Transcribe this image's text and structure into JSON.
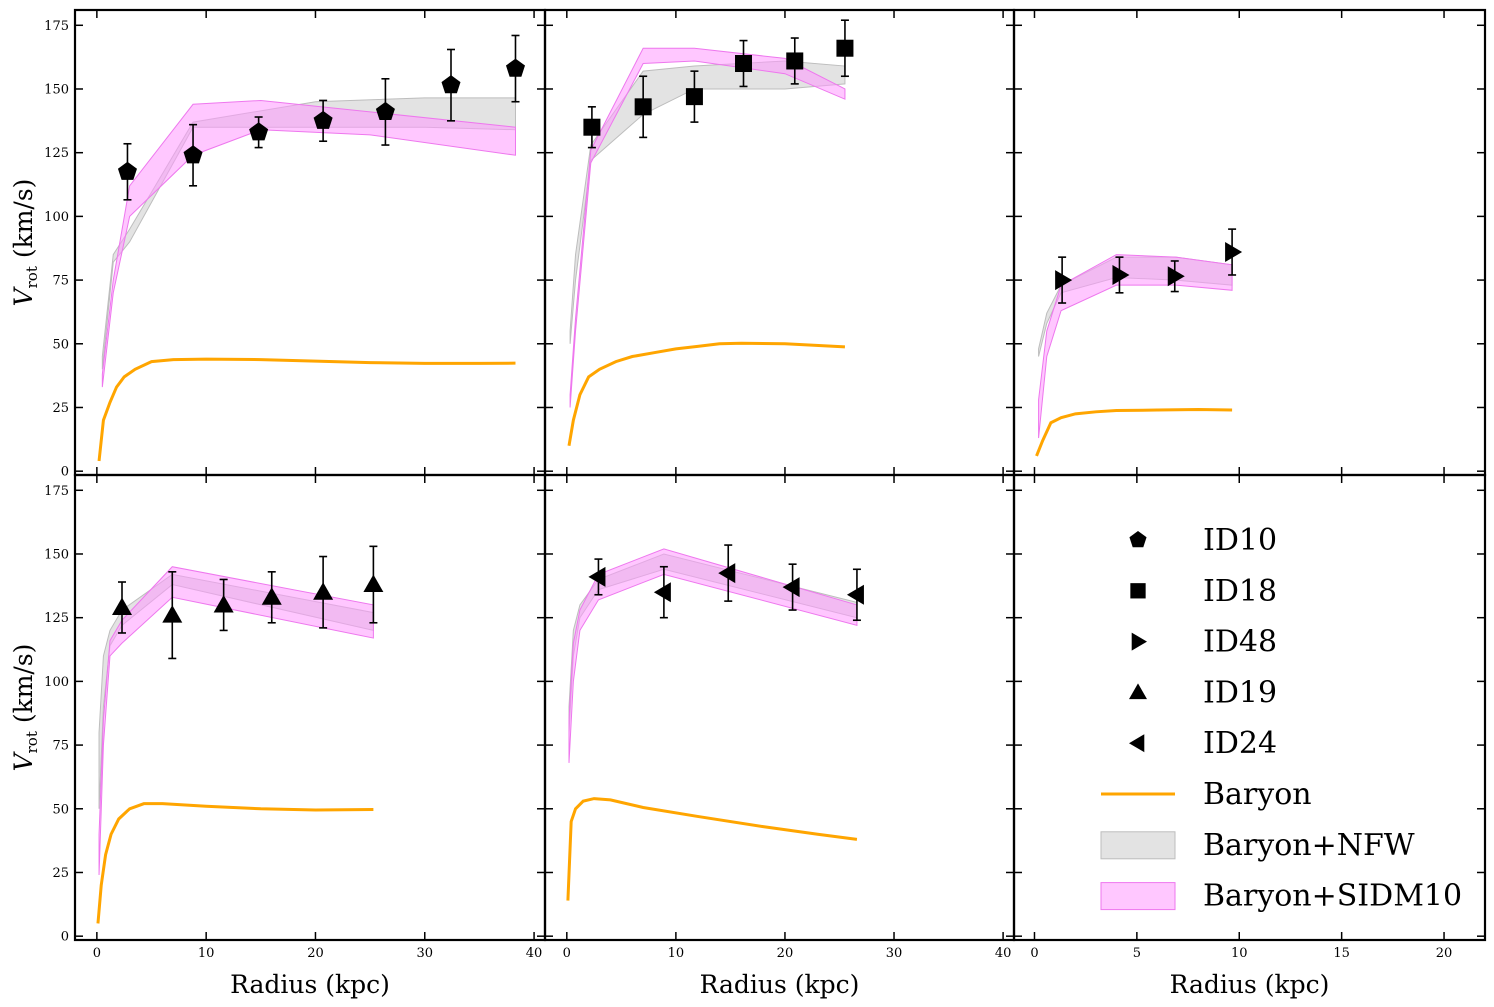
{
  "chart_data": [
    {
      "type": "line",
      "panel": "top-left",
      "ylabel": "V_rot (km/s)",
      "xlabel": "",
      "xlim": [
        -2,
        41
      ],
      "ylim": [
        -1.5,
        181
      ],
      "ytick_labels": [
        "0",
        "25",
        "50",
        "75",
        "100",
        "125",
        "150",
        "175"
      ],
      "xtick_labels": [],
      "points": {
        "name": "ID10",
        "marker": "pentagon",
        "x": [
          2.8,
          8.8,
          14.8,
          20.7,
          26.4,
          32.4,
          38.3
        ],
        "y": [
          117.5,
          124,
          133,
          137.5,
          141,
          151.5,
          158
        ],
        "err": [
          11,
          12,
          6,
          8,
          13,
          14,
          13
        ]
      },
      "baryon": {
        "x": [
          0.2,
          0.6,
          1.2,
          1.8,
          2.5,
          3.5,
          5,
          7,
          10,
          15,
          20,
          25,
          30,
          35,
          38.3
        ],
        "y": [
          4,
          20,
          27,
          33,
          37,
          40,
          43,
          43.8,
          44,
          43.8,
          43.2,
          42.6,
          42.3,
          42.3,
          42.4
        ]
      },
      "nfw": {
        "x": [
          0.5,
          1.5,
          3,
          8.8,
          20,
          30,
          38.3
        ],
        "lo": [
          40,
          82,
          90,
          135,
          135,
          135,
          134
        ],
        "hi": [
          45,
          85,
          95,
          137,
          145,
          146.5,
          146.5
        ]
      },
      "sidm": {
        "x": [
          0.5,
          1.5,
          3,
          8.8,
          15,
          25,
          38.3
        ],
        "lo": [
          33,
          70,
          100,
          124,
          134,
          132,
          124
        ],
        "hi": [
          38,
          75,
          112,
          144,
          145.5,
          141,
          135
        ]
      }
    },
    {
      "type": "line",
      "panel": "top-middle",
      "ylabel": "",
      "xlabel": "",
      "xlim": [
        -2,
        41
      ],
      "ylim": [
        -1.5,
        181
      ],
      "ytick_labels": [],
      "xtick_labels": [],
      "points": {
        "name": "ID18",
        "marker": "square",
        "x": [
          2.3,
          7,
          11.7,
          16.2,
          20.9,
          25.5
        ],
        "y": [
          135,
          143,
          147,
          160,
          161,
          166
        ],
        "err": [
          8,
          12,
          10,
          9,
          9,
          11
        ]
      },
      "baryon": {
        "x": [
          0.2,
          0.6,
          1.2,
          2,
          3,
          4.5,
          6,
          8,
          10,
          12,
          14,
          16,
          20,
          25.5
        ],
        "y": [
          10,
          20,
          30,
          37,
          40,
          43,
          45,
          46.5,
          48,
          49,
          50,
          50.2,
          50,
          48.8
        ]
      },
      "nfw": {
        "x": [
          0.3,
          0.8,
          2.2,
          7,
          11.7,
          20,
          25.5
        ],
        "lo": [
          50,
          75,
          122,
          140,
          150,
          150,
          152
        ],
        "hi": [
          55,
          85,
          128,
          157,
          159,
          161,
          159
        ]
      },
      "sidm": {
        "x": [
          0.3,
          0.8,
          2.2,
          7,
          11.7,
          20,
          25.5
        ],
        "lo": [
          25,
          55,
          121,
          160,
          161,
          156,
          146
        ],
        "hi": [
          30,
          60,
          126,
          166,
          166,
          162,
          150
        ]
      }
    },
    {
      "type": "line",
      "panel": "top-right",
      "ylabel": "",
      "xlabel": "",
      "xlim": [
        -1,
        22
      ],
      "ylim": [
        -1.5,
        181
      ],
      "ytick_labels": [],
      "xtick_labels": [],
      "points": {
        "name": "ID48",
        "marker": "triangle-right",
        "x": [
          1.35,
          4.15,
          6.85,
          9.65
        ],
        "y": [
          75,
          77,
          76.5,
          86
        ],
        "err": [
          9,
          7,
          6,
          9
        ]
      },
      "baryon": {
        "x": [
          0.1,
          0.4,
          0.8,
          1.3,
          2,
          3,
          4,
          6,
          8,
          9.65
        ],
        "y": [
          6,
          12,
          19,
          21,
          22.5,
          23.3,
          23.8,
          24,
          24.2,
          24
        ]
      },
      "nfw": {
        "x": [
          0.2,
          0.6,
          1.3,
          4,
          6.9,
          9.65
        ],
        "lo": [
          45,
          58,
          70,
          76,
          75,
          73
        ],
        "hi": [
          48,
          62,
          73,
          84,
          84,
          81
        ]
      },
      "sidm": {
        "x": [
          0.2,
          0.6,
          1.3,
          4,
          6.9,
          9.65
        ],
        "lo": [
          13,
          45,
          63,
          73,
          73,
          71
        ],
        "hi": [
          28,
          55,
          73,
          85,
          84,
          81
        ]
      }
    },
    {
      "type": "line",
      "panel": "bottom-left",
      "ylabel": "V_rot (km/s)",
      "xlabel": "Radius (kpc)",
      "xlim": [
        -2,
        41
      ],
      "ylim": [
        -1.5,
        181
      ],
      "ytick_labels": [
        "0",
        "25",
        "50",
        "75",
        "100",
        "125",
        "150",
        "175"
      ],
      "xtick_labels": [
        "0",
        "10",
        "20",
        "30",
        "40"
      ],
      "points": {
        "name": "ID19",
        "marker": "triangle-up",
        "x": [
          2.3,
          6.9,
          11.6,
          16,
          20.7,
          25.3
        ],
        "y": [
          129,
          126,
          130,
          133,
          135,
          138
        ],
        "err": [
          10,
          17,
          10,
          10,
          14,
          15
        ]
      },
      "baryon": {
        "x": [
          0.1,
          0.4,
          0.8,
          1.3,
          2,
          3,
          4.3,
          6,
          10,
          15,
          20,
          25.3
        ],
        "y": [
          5,
          20,
          32,
          40,
          46,
          50,
          52,
          52,
          51,
          50,
          49.5,
          49.7
        ]
      },
      "nfw": {
        "x": [
          0.2,
          0.6,
          1.2,
          2.3,
          6.9,
          25.3
        ],
        "lo": [
          50,
          90,
          114,
          122,
          138,
          120
        ],
        "hi": [
          80,
          110,
          120,
          128,
          142,
          127
        ]
      },
      "sidm": {
        "x": [
          0.2,
          0.6,
          1.2,
          2.3,
          6.9,
          25.3
        ],
        "lo": [
          24,
          75,
          110,
          115,
          133,
          117
        ],
        "hi": [
          40,
          85,
          116,
          124,
          145,
          130
        ]
      }
    },
    {
      "type": "line",
      "panel": "bottom-middle",
      "ylabel": "",
      "xlabel": "Radius (kpc)",
      "xlim": [
        -2,
        41
      ],
      "ylim": [
        -1.5,
        181
      ],
      "ytick_labels": [],
      "xtick_labels": [
        "0",
        "10",
        "20",
        "30",
        "40"
      ],
      "points": {
        "name": "ID24",
        "marker": "triangle-left",
        "x": [
          2.9,
          8.9,
          14.8,
          20.7,
          26.6
        ],
        "y": [
          141,
          135,
          142.5,
          137,
          134
        ],
        "err": [
          7,
          10,
          11,
          9,
          10
        ]
      },
      "baryon": {
        "x": [
          0.1,
          0.4,
          0.8,
          1.5,
          2.5,
          4,
          7,
          12,
          18,
          23,
          26.6
        ],
        "y": [
          14,
          45,
          50,
          53,
          54,
          53.5,
          50.5,
          47,
          43,
          40,
          38
        ]
      },
      "nfw": {
        "x": [
          0.2,
          0.6,
          1.2,
          2.9,
          8.9,
          26.6
        ],
        "lo": [
          80,
          110,
          125,
          136,
          144,
          125
        ],
        "hi": [
          90,
          120,
          130,
          140,
          150,
          131
        ]
      },
      "sidm": {
        "x": [
          0.2,
          0.6,
          1.2,
          2.9,
          8.9,
          26.6
        ],
        "lo": [
          68,
          100,
          120,
          132,
          142,
          122
        ],
        "hi": [
          85,
          115,
          128,
          142,
          152,
          130
        ]
      }
    },
    {
      "type": "legend",
      "panel": "bottom-right",
      "xlabel": "Radius (kpc)",
      "xlim": [
        -1,
        22
      ],
      "xtick_labels": [
        "0",
        "5",
        "10",
        "15",
        "20"
      ],
      "entries": [
        {
          "label": "ID10",
          "marker": "pentagon"
        },
        {
          "label": "ID18",
          "marker": "square"
        },
        {
          "label": "ID48",
          "marker": "triangle-right"
        },
        {
          "label": "ID19",
          "marker": "triangle-up"
        },
        {
          "label": "ID24",
          "marker": "triangle-left"
        },
        {
          "label": "Baryon",
          "marker": "line"
        },
        {
          "label": "Baryon+NFW",
          "marker": "patch-nfw"
        },
        {
          "label": "Baryon+SIDM10",
          "marker": "patch-sidm"
        }
      ]
    }
  ],
  "colors": {
    "baryon": "#ffa500",
    "nfw_fill": "#cccccc",
    "nfw_edge": "#bdbdbd",
    "sidm_fill": "#ff99ff",
    "sidm_edge": "#ee77ee",
    "axes": "#000000",
    "marker": "#000000"
  }
}
